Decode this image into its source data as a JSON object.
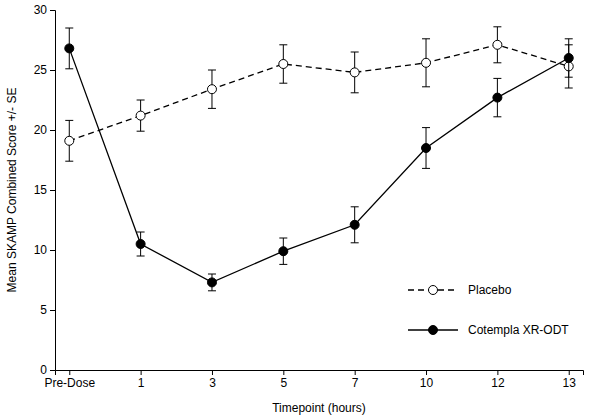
{
  "chart_data": {
    "type": "line",
    "x_label": "Timepoint (hours)",
    "y_label": "Mean SKAMP Combined Score +/- SE",
    "categories": [
      "Pre-Dose",
      "1",
      "3",
      "5",
      "7",
      "10",
      "12",
      "13"
    ],
    "series": [
      {
        "name": "Placebo",
        "color": "#000000",
        "line_style": "dashed",
        "marker": "open-circle",
        "values": [
          19.1,
          21.2,
          23.4,
          25.5,
          24.8,
          25.6,
          27.1,
          25.3
        ],
        "errors": [
          1.7,
          1.3,
          1.6,
          1.6,
          1.7,
          2.0,
          1.5,
          1.8
        ]
      },
      {
        "name": "Cotempla XR-ODT",
        "color": "#000000",
        "line_style": "solid",
        "marker": "circle",
        "values": [
          26.8,
          10.5,
          7.3,
          9.9,
          12.1,
          18.5,
          22.7,
          26.0
        ],
        "errors": [
          1.7,
          1.0,
          0.7,
          1.1,
          1.5,
          1.7,
          1.6,
          1.6
        ]
      }
    ],
    "ylim": [
      0,
      30
    ],
    "yticks": [
      0,
      5,
      10,
      15,
      20,
      25,
      30
    ],
    "grid": false,
    "legend": "lower right"
  }
}
